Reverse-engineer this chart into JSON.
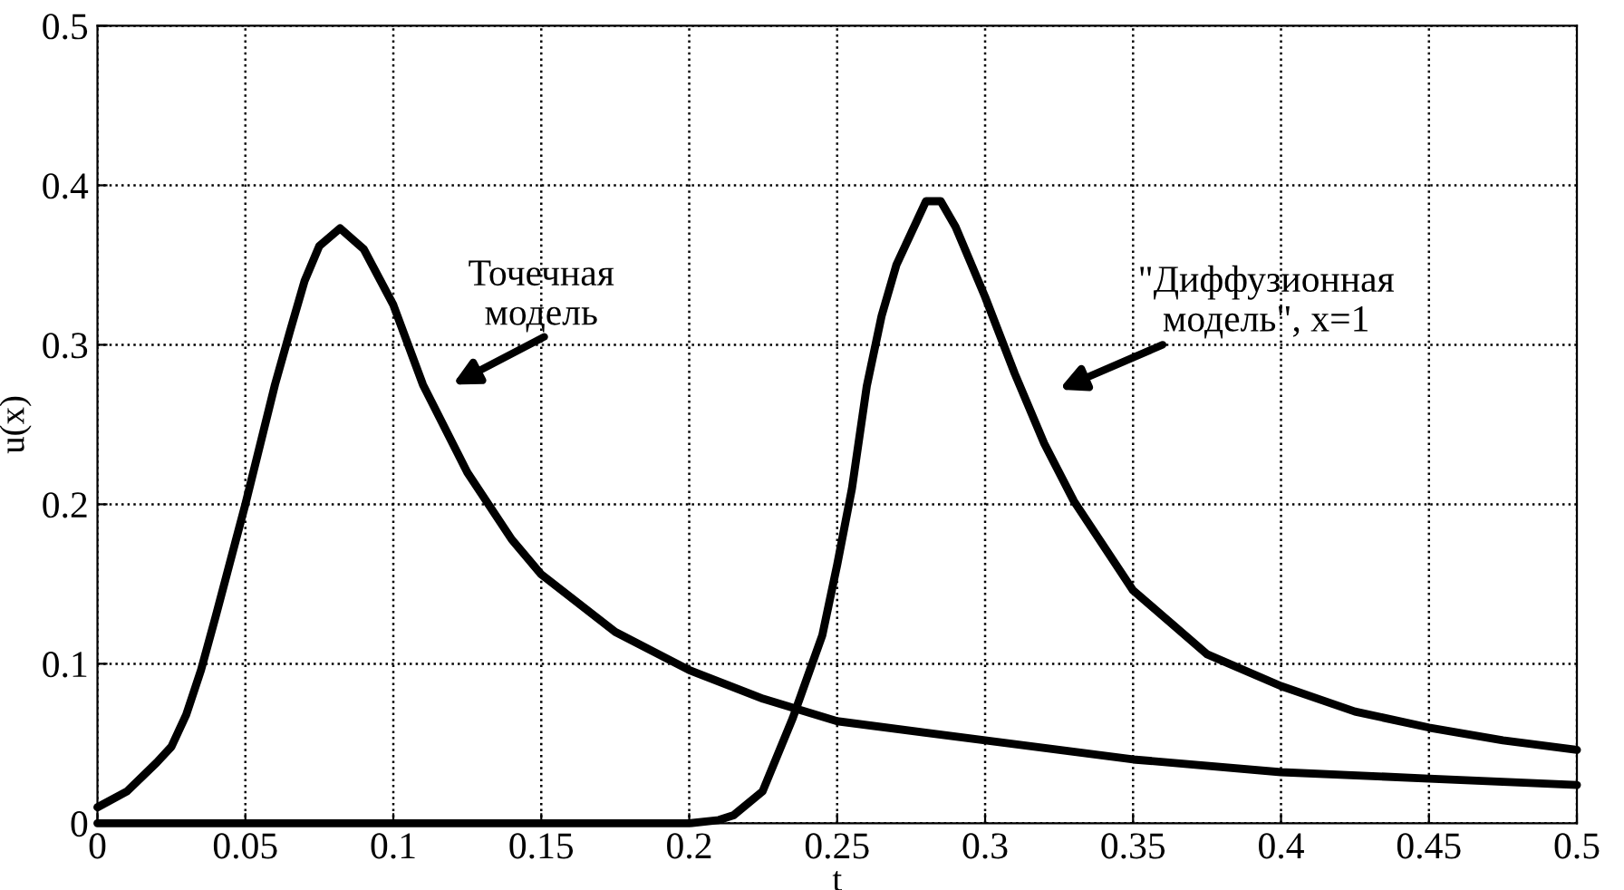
{
  "chart_data": {
    "type": "line",
    "xlabel": "t",
    "ylabel": "u(x)",
    "xlim": [
      0,
      0.5
    ],
    "ylim": [
      0,
      0.5
    ],
    "xticks": [
      0,
      0.05,
      0.1,
      0.15,
      0.2,
      0.25,
      0.3,
      0.35,
      0.4,
      0.45,
      0.5
    ],
    "yticks": [
      0,
      0.1,
      0.2,
      0.3,
      0.4,
      0.5
    ],
    "grid": true,
    "line_style": "solid",
    "marker": "none",
    "series": [
      {
        "color": "#000000",
        "x": [
          0,
          0.01,
          0.02,
          0.025,
          0.03,
          0.035,
          0.04,
          0.05,
          0.06,
          0.065,
          0.07,
          0.075,
          0.082,
          0.09,
          0.1,
          0.11,
          0.125,
          0.14,
          0.15,
          0.175,
          0.2,
          0.225,
          0.25,
          0.3,
          0.35,
          0.4,
          0.45,
          0.5
        ],
        "values": [
          0.01,
          0.02,
          0.038,
          0.048,
          0.068,
          0.096,
          0.13,
          0.2,
          0.275,
          0.308,
          0.34,
          0.362,
          0.373,
          0.36,
          0.325,
          0.275,
          0.22,
          0.178,
          0.156,
          0.12,
          0.096,
          0.078,
          0.064,
          0.052,
          0.04,
          0.032,
          0.028,
          0.024
        ]
      },
      {
        "color": "#000000",
        "x": [
          0,
          0.1,
          0.2,
          0.21,
          0.215,
          0.2248,
          0.235,
          0.245,
          0.25,
          0.255,
          0.26,
          0.265,
          0.27,
          0.28,
          0.285,
          0.29,
          0.3,
          0.31,
          0.32,
          0.33,
          0.35,
          0.375,
          0.4,
          0.425,
          0.45,
          0.475,
          0.5
        ],
        "values": [
          0,
          0,
          0,
          0.002,
          0.005,
          0.02,
          0.066,
          0.118,
          0.162,
          0.21,
          0.274,
          0.318,
          0.35,
          0.39,
          0.39,
          0.374,
          0.33,
          0.282,
          0.238,
          0.202,
          0.146,
          0.106,
          0.086,
          0.07,
          0.06,
          0.052,
          0.046
        ]
      }
    ],
    "annotations": [
      "Точечная\nмодель",
      "\"Диффузионная\nмодель\", x=1"
    ]
  }
}
